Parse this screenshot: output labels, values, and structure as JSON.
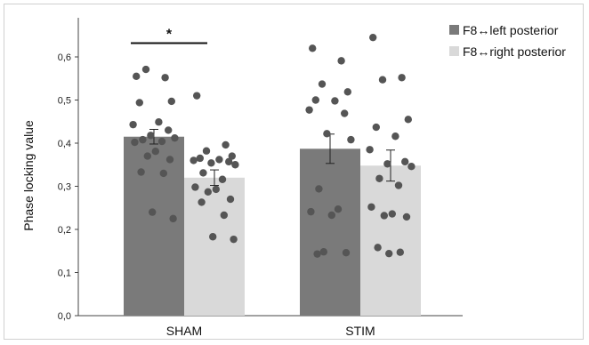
{
  "chart_data": {
    "type": "bar",
    "ylabel": "Phase locking value",
    "ylim": [
      0,
      0.65
    ],
    "yticks": [
      "0,0",
      "0,1",
      "0,2",
      "0,3",
      "0,4",
      "0,5",
      "0,6"
    ],
    "yticks_values": [
      0,
      0.1,
      0.2,
      0.3,
      0.4,
      0.5,
      0.6
    ],
    "categories": [
      "SHAM",
      "STIM"
    ],
    "series": [
      {
        "name": "F8↔left posterior",
        "color": "#7a7a7a",
        "values": [
          0.415,
          0.387
        ],
        "errors": [
          0.017,
          0.034
        ],
        "points": [
          [
            0.555,
            0.552,
            0.571,
            0.497,
            0.494,
            0.449,
            0.443,
            0.43,
            0.418,
            0.412,
            0.408,
            0.404,
            0.402,
            0.381,
            0.37,
            0.362,
            0.333,
            0.33,
            0.24,
            0.225
          ],
          [
            0.62,
            0.591,
            0.537,
            0.519,
            0.5,
            0.498,
            0.477,
            0.469,
            0.422,
            0.408,
            0.294,
            0.247,
            0.241,
            0.233,
            0.148,
            0.146,
            0.143
          ]
        ]
      },
      {
        "name": "F8↔right posterior",
        "color": "#d9d9d9",
        "values": [
          0.32,
          0.348
        ],
        "errors": [
          0.018,
          0.036
        ],
        "points": [
          [
            0.51,
            0.396,
            0.382,
            0.37,
            0.365,
            0.362,
            0.36,
            0.357,
            0.354,
            0.35,
            0.331,
            0.316,
            0.298,
            0.293,
            0.287,
            0.27,
            0.263,
            0.233,
            0.183,
            0.177
          ],
          [
            0.645,
            0.552,
            0.547,
            0.455,
            0.437,
            0.416,
            0.385,
            0.357,
            0.352,
            0.346,
            0.318,
            0.302,
            0.252,
            0.236,
            0.232,
            0.229,
            0.158,
            0.147,
            0.144
          ]
        ]
      }
    ],
    "point_color": "#555555",
    "annotations": [
      {
        "text": "*",
        "between": [
          "SHAM"
        ]
      }
    ],
    "legend": "top-right",
    "grid": false
  }
}
